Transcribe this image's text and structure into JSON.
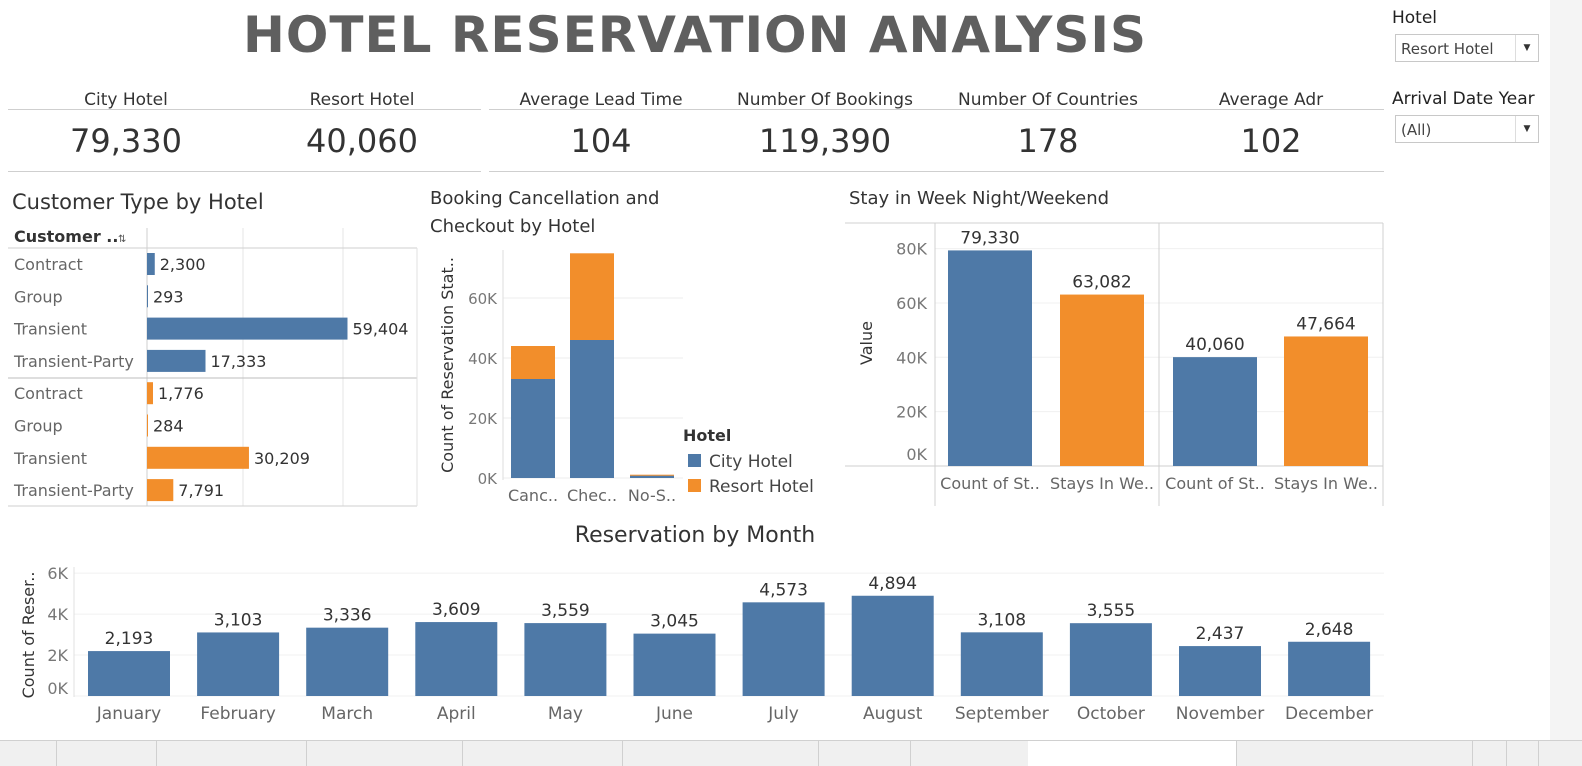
{
  "header": {
    "title": "HOTEL RESERVATION ANALYSIS"
  },
  "kpis": [
    {
      "label": "City Hotel",
      "value": "79,330"
    },
    {
      "label": "Resort Hotel",
      "value": "40,060"
    },
    {
      "label": "Average Lead Time",
      "value": "104"
    },
    {
      "label": "Number Of Bookings",
      "value": "119,390"
    },
    {
      "label": "Number Of Countries",
      "value": "178"
    },
    {
      "label": "Average Adr",
      "value": "102"
    }
  ],
  "filters": {
    "hotel": {
      "label": "Hotel",
      "value": "Resort Hotel"
    },
    "year": {
      "label": "Arrival Date Year",
      "value": "(All)"
    }
  },
  "colors": {
    "city": "#4e79a7",
    "resort": "#f28e2b",
    "title": "#5f5f5f"
  },
  "sections": {
    "customer_type": "Customer Type by Hotel",
    "cancellation_line1": "Booking Cancellation and",
    "cancellation_line2": "Checkout by Hotel",
    "stay": "Stay in Week Night/Weekend",
    "month": "Reservation by Month"
  },
  "chart_data": [
    {
      "id": "customer_type",
      "type": "bar",
      "orientation": "horizontal",
      "header": "Customer ..",
      "groups": [
        {
          "hotel": "City Hotel",
          "color": "#4e79a7",
          "categories": [
            "Contract",
            "Group",
            "Transient",
            "Transient-Party"
          ],
          "values": [
            2300,
            293,
            59404,
            17333
          ],
          "labels": [
            "2,300",
            "293",
            "59,404",
            "17,333"
          ]
        },
        {
          "hotel": "Resort Hotel",
          "color": "#f28e2b",
          "categories": [
            "Contract",
            "Group",
            "Transient",
            "Transient-Party"
          ],
          "values": [
            1776,
            284,
            30209,
            7791
          ],
          "labels": [
            "1,776",
            "284",
            "30,209",
            "7,791"
          ]
        }
      ],
      "xlim": [
        0,
        80000
      ]
    },
    {
      "id": "cancellation",
      "type": "bar",
      "stacked": true,
      "categories": [
        "Canc..",
        "Chec..",
        "No-S.."
      ],
      "series": [
        {
          "name": "City Hotel",
          "color": "#4e79a7",
          "values": [
            33000,
            46000,
            800
          ]
        },
        {
          "name": "Resort Hotel",
          "color": "#f28e2b",
          "values": [
            11000,
            28900,
            300
          ]
        }
      ],
      "ylabel": "Count of Reservation Stat..",
      "yticks": [
        "0K",
        "20K",
        "40K",
        "60K"
      ],
      "ytick_values": [
        0,
        20000,
        40000,
        60000
      ],
      "ylim": [
        0,
        76000
      ],
      "legend": {
        "title": "Hotel",
        "position": "bottom-right"
      }
    },
    {
      "id": "stay",
      "type": "bar",
      "panels": [
        {
          "categories": [
            "Count of St..",
            "Stays In We.."
          ],
          "values": [
            79330,
            63082
          ],
          "labels": [
            "79,330",
            "63,082"
          ],
          "colors": [
            "#4e79a7",
            "#f28e2b"
          ]
        },
        {
          "categories": [
            "Count of St..",
            "Stays In We.."
          ],
          "values": [
            40060,
            47664
          ],
          "labels": [
            "40,060",
            "47,664"
          ],
          "colors": [
            "#4e79a7",
            "#f28e2b"
          ]
        }
      ],
      "ylabel": "Value",
      "yticks": [
        "0K",
        "20K",
        "40K",
        "60K",
        "80K"
      ],
      "ytick_values": [
        0,
        20000,
        40000,
        60000,
        80000
      ],
      "ylim": [
        0,
        85000
      ]
    },
    {
      "id": "month",
      "type": "bar",
      "categories": [
        "January",
        "February",
        "March",
        "April",
        "May",
        "June",
        "July",
        "August",
        "September",
        "October",
        "November",
        "December"
      ],
      "values": [
        2193,
        3103,
        3336,
        3609,
        3559,
        3045,
        4573,
        4894,
        3108,
        3555,
        2437,
        2648
      ],
      "labels": [
        "2,193",
        "3,103",
        "3,336",
        "3,609",
        "3,559",
        "3,045",
        "4,573",
        "4,894",
        "3,108",
        "3,555",
        "2,437",
        "2,648"
      ],
      "color": "#4e79a7",
      "ylabel": "Count of Reser..",
      "yticks": [
        "0K",
        "2K",
        "4K",
        "6K"
      ],
      "ytick_values": [
        0,
        2000,
        4000,
        6000
      ],
      "ylim": [
        0,
        6200
      ]
    }
  ]
}
